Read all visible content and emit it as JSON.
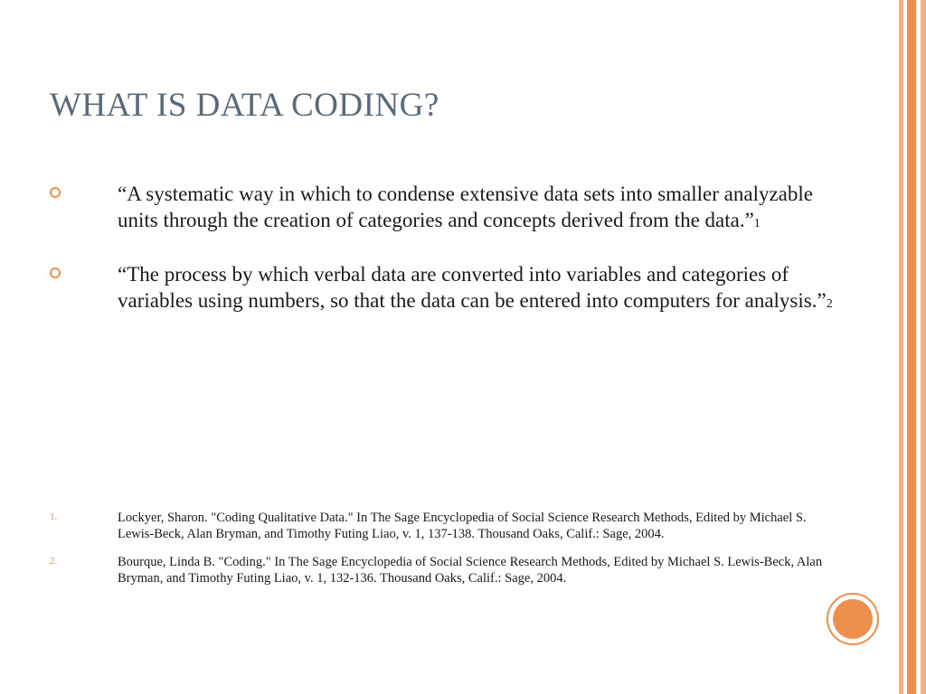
{
  "slide": {
    "title": "WHAT IS DATA CODING?",
    "title_color": "#596a7b",
    "title_fontsize": 37,
    "body_fontsize": 23,
    "body_color": "#1a1a1a",
    "bullet_ring_color": "#ef8f4e",
    "background_color": "#ffffff",
    "bullets": [
      {
        "text": "“A systematic way in which to condense extensive data sets into smaller analyzable units through the creation of categories and concepts derived from the data.”",
        "sup": "1"
      },
      {
        "text": "“The process by which verbal data are converted into variables and categories of variables using numbers, so that the data can be entered into computers for analysis.”",
        "sup": "2"
      }
    ],
    "references": [
      {
        "num": "1.",
        "text": "Lockyer, Sharon. \"Coding Qualitative Data.\" In The Sage Encyclopedia of Social Science Research Methods, Edited by Michael S. Lewis-Beck, Alan Bryman, and Timothy Futing Liao, v. 1, 137-138. Thousand Oaks, Calif.: Sage, 2004."
      },
      {
        "num": "2.",
        "text": "Bourque, Linda B. \"Coding.\" In The Sage Encyclopedia of Social Science Research Methods, Edited by Michael S. Lewis-Beck, Alan Bryman, and Timothy Futing Liao, v. 1, 132-136. Thousand Oaks, Calif.: Sage, 2004."
      }
    ],
    "ref_fontsize": 14.5,
    "ref_num_color": "#ef8f4e",
    "side_bars": [
      {
        "color": "#f2b288",
        "width": 5
      },
      {
        "color": "#ffffff",
        "width": 4
      },
      {
        "color": "#ef8f4e",
        "width": 10
      },
      {
        "color": "#ffffff",
        "width": 5
      },
      {
        "color": "#f2b288",
        "width": 6
      }
    ],
    "circle": {
      "outer_color": "#ef8f4e",
      "inner_color": "#ef8f4e"
    }
  }
}
